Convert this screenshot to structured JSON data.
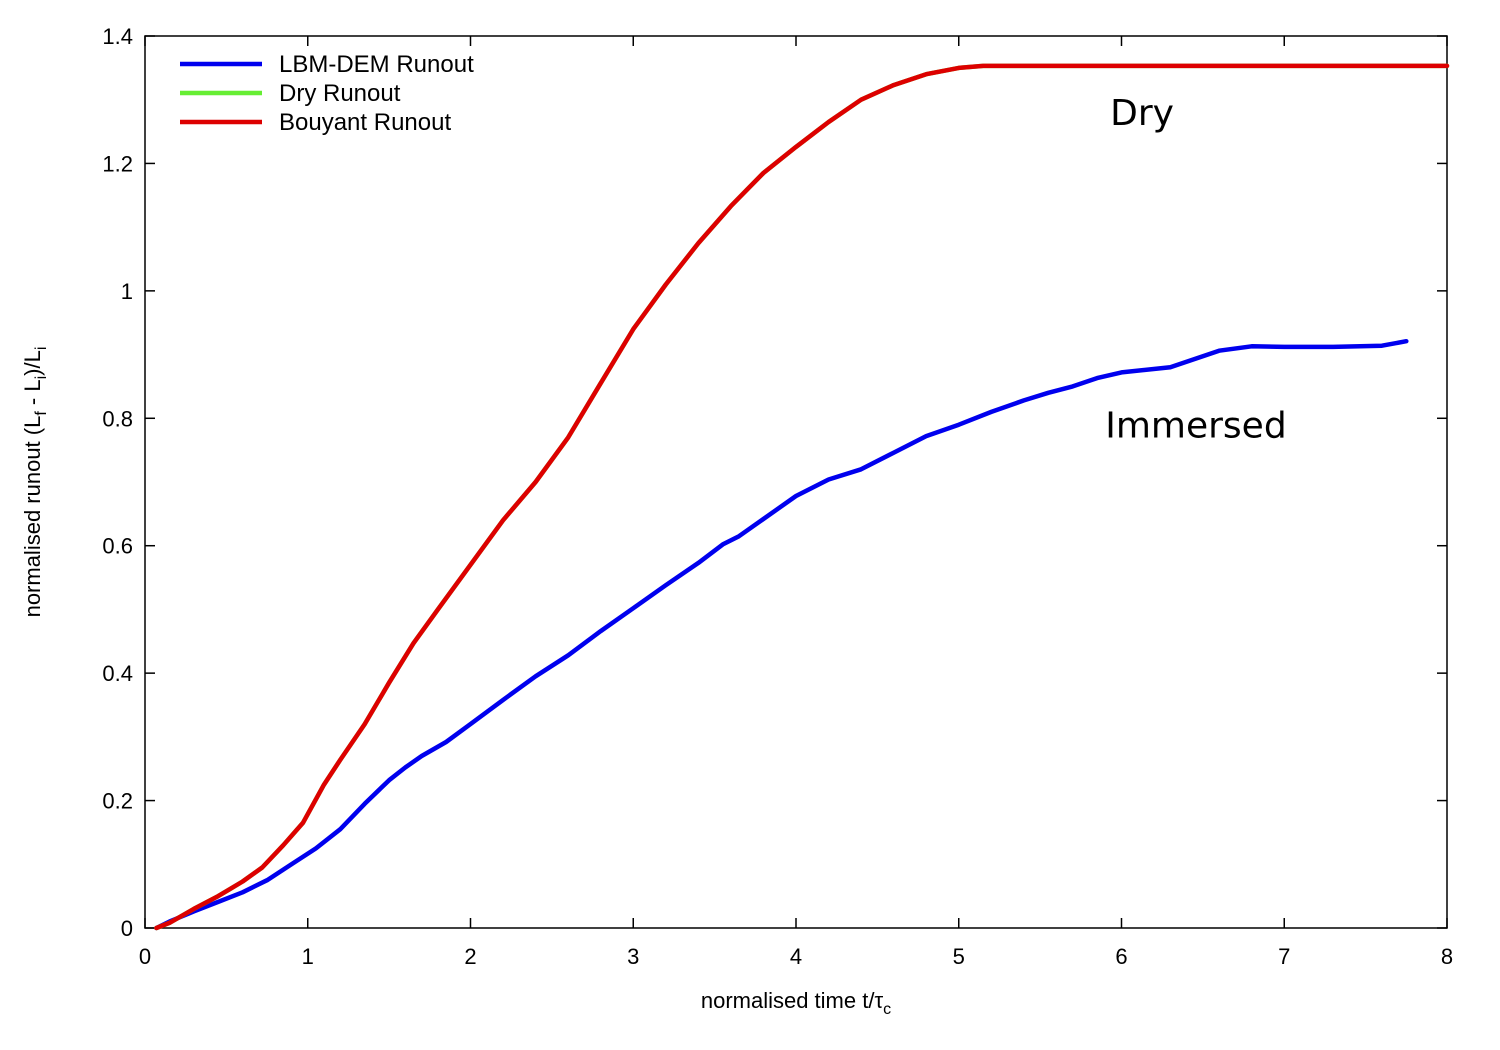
{
  "chart_data": {
    "type": "line",
    "xlabel": "normalised time t/τc",
    "xlabel_main": "normalised time t/τ",
    "xlabel_sub": "c",
    "ylabel": "normalised runout (Lf - Li)/Li",
    "xlim": [
      0,
      8
    ],
    "ylim": [
      0,
      1.4
    ],
    "x_ticks": [
      "0",
      "1",
      "2",
      "3",
      "4",
      "5",
      "6",
      "7",
      "8"
    ],
    "y_ticks": [
      "0",
      "0.2",
      "0.4",
      "0.6",
      "0.8",
      "1",
      "1.2",
      "1.4"
    ],
    "grid": false,
    "legend_position": "top-left",
    "annotations": [
      {
        "text": "Dry",
        "x": 5.93,
        "y": 1.26
      },
      {
        "text": "Immersed",
        "x": 5.9,
        "y": 0.77
      }
    ],
    "series": [
      {
        "name": "LBM-DEM Runout",
        "color": "#0000ee",
        "x": [
          0.07,
          0.15,
          0.3,
          0.45,
          0.6,
          0.75,
          0.9,
          1.05,
          1.2,
          1.35,
          1.5,
          1.6,
          1.7,
          1.85,
          2.0,
          2.2,
          2.4,
          2.6,
          2.8,
          3.0,
          3.2,
          3.4,
          3.55,
          3.65,
          3.8,
          4.0,
          4.2,
          4.4,
          4.6,
          4.8,
          5.0,
          5.2,
          5.4,
          5.55,
          5.7,
          5.85,
          6.0,
          6.3,
          6.6,
          6.8,
          7.0,
          7.3,
          7.6,
          7.75
        ],
        "y": [
          0.0,
          0.01,
          0.026,
          0.041,
          0.056,
          0.075,
          0.1,
          0.125,
          0.155,
          0.195,
          0.232,
          0.252,
          0.27,
          0.292,
          0.32,
          0.358,
          0.395,
          0.428,
          0.466,
          0.502,
          0.538,
          0.573,
          0.602,
          0.615,
          0.642,
          0.678,
          0.704,
          0.72,
          0.746,
          0.772,
          0.79,
          0.81,
          0.828,
          0.84,
          0.85,
          0.863,
          0.872,
          0.88,
          0.906,
          0.913,
          0.912,
          0.912,
          0.914,
          0.921
        ]
      },
      {
        "name": "Dry Runout",
        "color": "#66ee33",
        "x": [
          0.07,
          0.15,
          0.3,
          0.45,
          0.6,
          0.72,
          0.85,
          0.97,
          1.1,
          1.2,
          1.35,
          1.5,
          1.65,
          1.8,
          2.0,
          2.2,
          2.4,
          2.6,
          2.8,
          3.0,
          3.2,
          3.4,
          3.6,
          3.8,
          4.0,
          4.2,
          4.4,
          4.6,
          4.8,
          5.0,
          5.15,
          5.5,
          6.0,
          6.5,
          7.0,
          7.5,
          8.0
        ],
        "y": [
          0.0,
          0.008,
          0.03,
          0.05,
          0.073,
          0.095,
          0.13,
          0.165,
          0.225,
          0.264,
          0.32,
          0.385,
          0.447,
          0.5,
          0.57,
          0.64,
          0.7,
          0.77,
          0.855,
          0.94,
          1.01,
          1.075,
          1.133,
          1.185,
          1.226,
          1.265,
          1.3,
          1.323,
          1.34,
          1.35,
          1.353,
          1.353,
          1.353,
          1.353,
          1.353,
          1.353,
          1.353
        ]
      },
      {
        "name": "Bouyant Runout",
        "color": "#dd0000",
        "x": [
          0.07,
          0.15,
          0.3,
          0.45,
          0.6,
          0.72,
          0.85,
          0.97,
          1.1,
          1.2,
          1.35,
          1.5,
          1.65,
          1.8,
          2.0,
          2.2,
          2.4,
          2.6,
          2.8,
          3.0,
          3.2,
          3.4,
          3.6,
          3.8,
          4.0,
          4.2,
          4.4,
          4.6,
          4.8,
          5.0,
          5.15,
          5.5,
          6.0,
          6.5,
          7.0,
          7.5,
          8.0
        ],
        "y": [
          0.0,
          0.008,
          0.03,
          0.05,
          0.073,
          0.095,
          0.13,
          0.165,
          0.225,
          0.264,
          0.32,
          0.385,
          0.447,
          0.5,
          0.57,
          0.64,
          0.7,
          0.77,
          0.855,
          0.94,
          1.01,
          1.075,
          1.133,
          1.185,
          1.226,
          1.265,
          1.3,
          1.323,
          1.34,
          1.35,
          1.353,
          1.353,
          1.353,
          1.353,
          1.353,
          1.353,
          1.353
        ]
      }
    ]
  }
}
